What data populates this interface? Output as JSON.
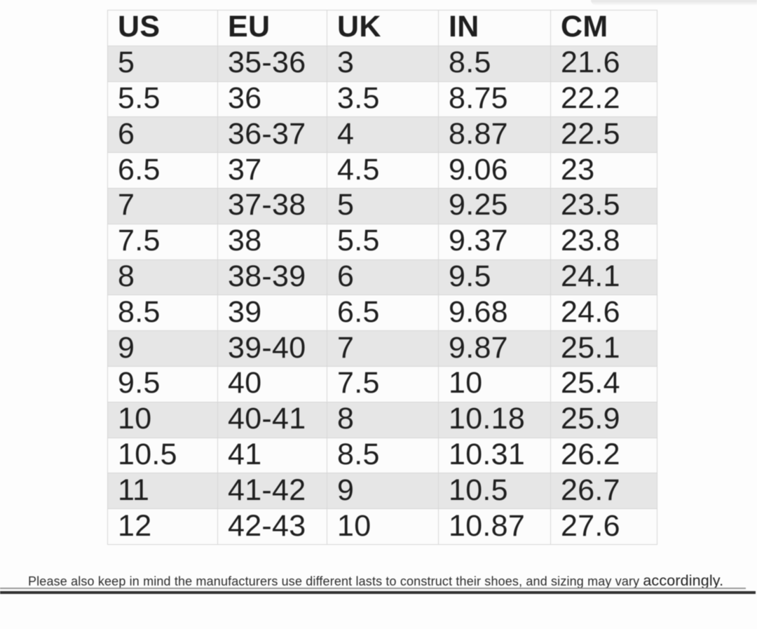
{
  "colors": {
    "page-bg": "#fdfdfd",
    "row-base": "#fcfcfc",
    "row-alt": "#e6e6e6",
    "grid": "#d6d6d6",
    "text": "#1f1f1f",
    "divider": "#333333"
  },
  "footer": {
    "note": "Please also keep in mind the manufacturers use different lasts to construct their shoes, and sizing may vary",
    "emphasis": "accordingly."
  },
  "chart_data": {
    "type": "table",
    "title": "",
    "columns": [
      "US",
      "EU",
      "UK",
      "IN",
      "CM"
    ],
    "rows": [
      [
        "5",
        "35-36",
        "3",
        "8.5",
        "21.6"
      ],
      [
        "5.5",
        "36",
        "3.5",
        "8.75",
        "22.2"
      ],
      [
        "6",
        "36-37",
        "4",
        "8.87",
        "22.5"
      ],
      [
        "6.5",
        "37",
        "4.5",
        "9.06",
        "23"
      ],
      [
        "7",
        "37-38",
        "5",
        "9.25",
        "23.5"
      ],
      [
        "7.5",
        "38",
        "5.5",
        "9.37",
        "23.8"
      ],
      [
        "8",
        "38-39",
        "6",
        "9.5",
        "24.1"
      ],
      [
        "8.5",
        "39",
        "6.5",
        "9.68",
        "24.6"
      ],
      [
        "9",
        "39-40",
        "7",
        "9.87",
        "25.1"
      ],
      [
        "9.5",
        "40",
        "7.5",
        "10",
        "25.4"
      ],
      [
        "10",
        "40-41",
        "8",
        "10.18",
        "25.9"
      ],
      [
        "10.5",
        "41",
        "8.5",
        "10.31",
        "26.2"
      ],
      [
        "11",
        "41-42",
        "9",
        "10.5",
        "26.7"
      ],
      [
        "12",
        "42-43",
        "10",
        "10.87",
        "27.6"
      ]
    ],
    "notes": "Please also keep in mind the manufacturers use different lasts to construct their shoes, and sizing may vary accordingly.",
    "layout_hints": {
      "striped_rows": true,
      "grid": true,
      "header_bold": true
    }
  }
}
